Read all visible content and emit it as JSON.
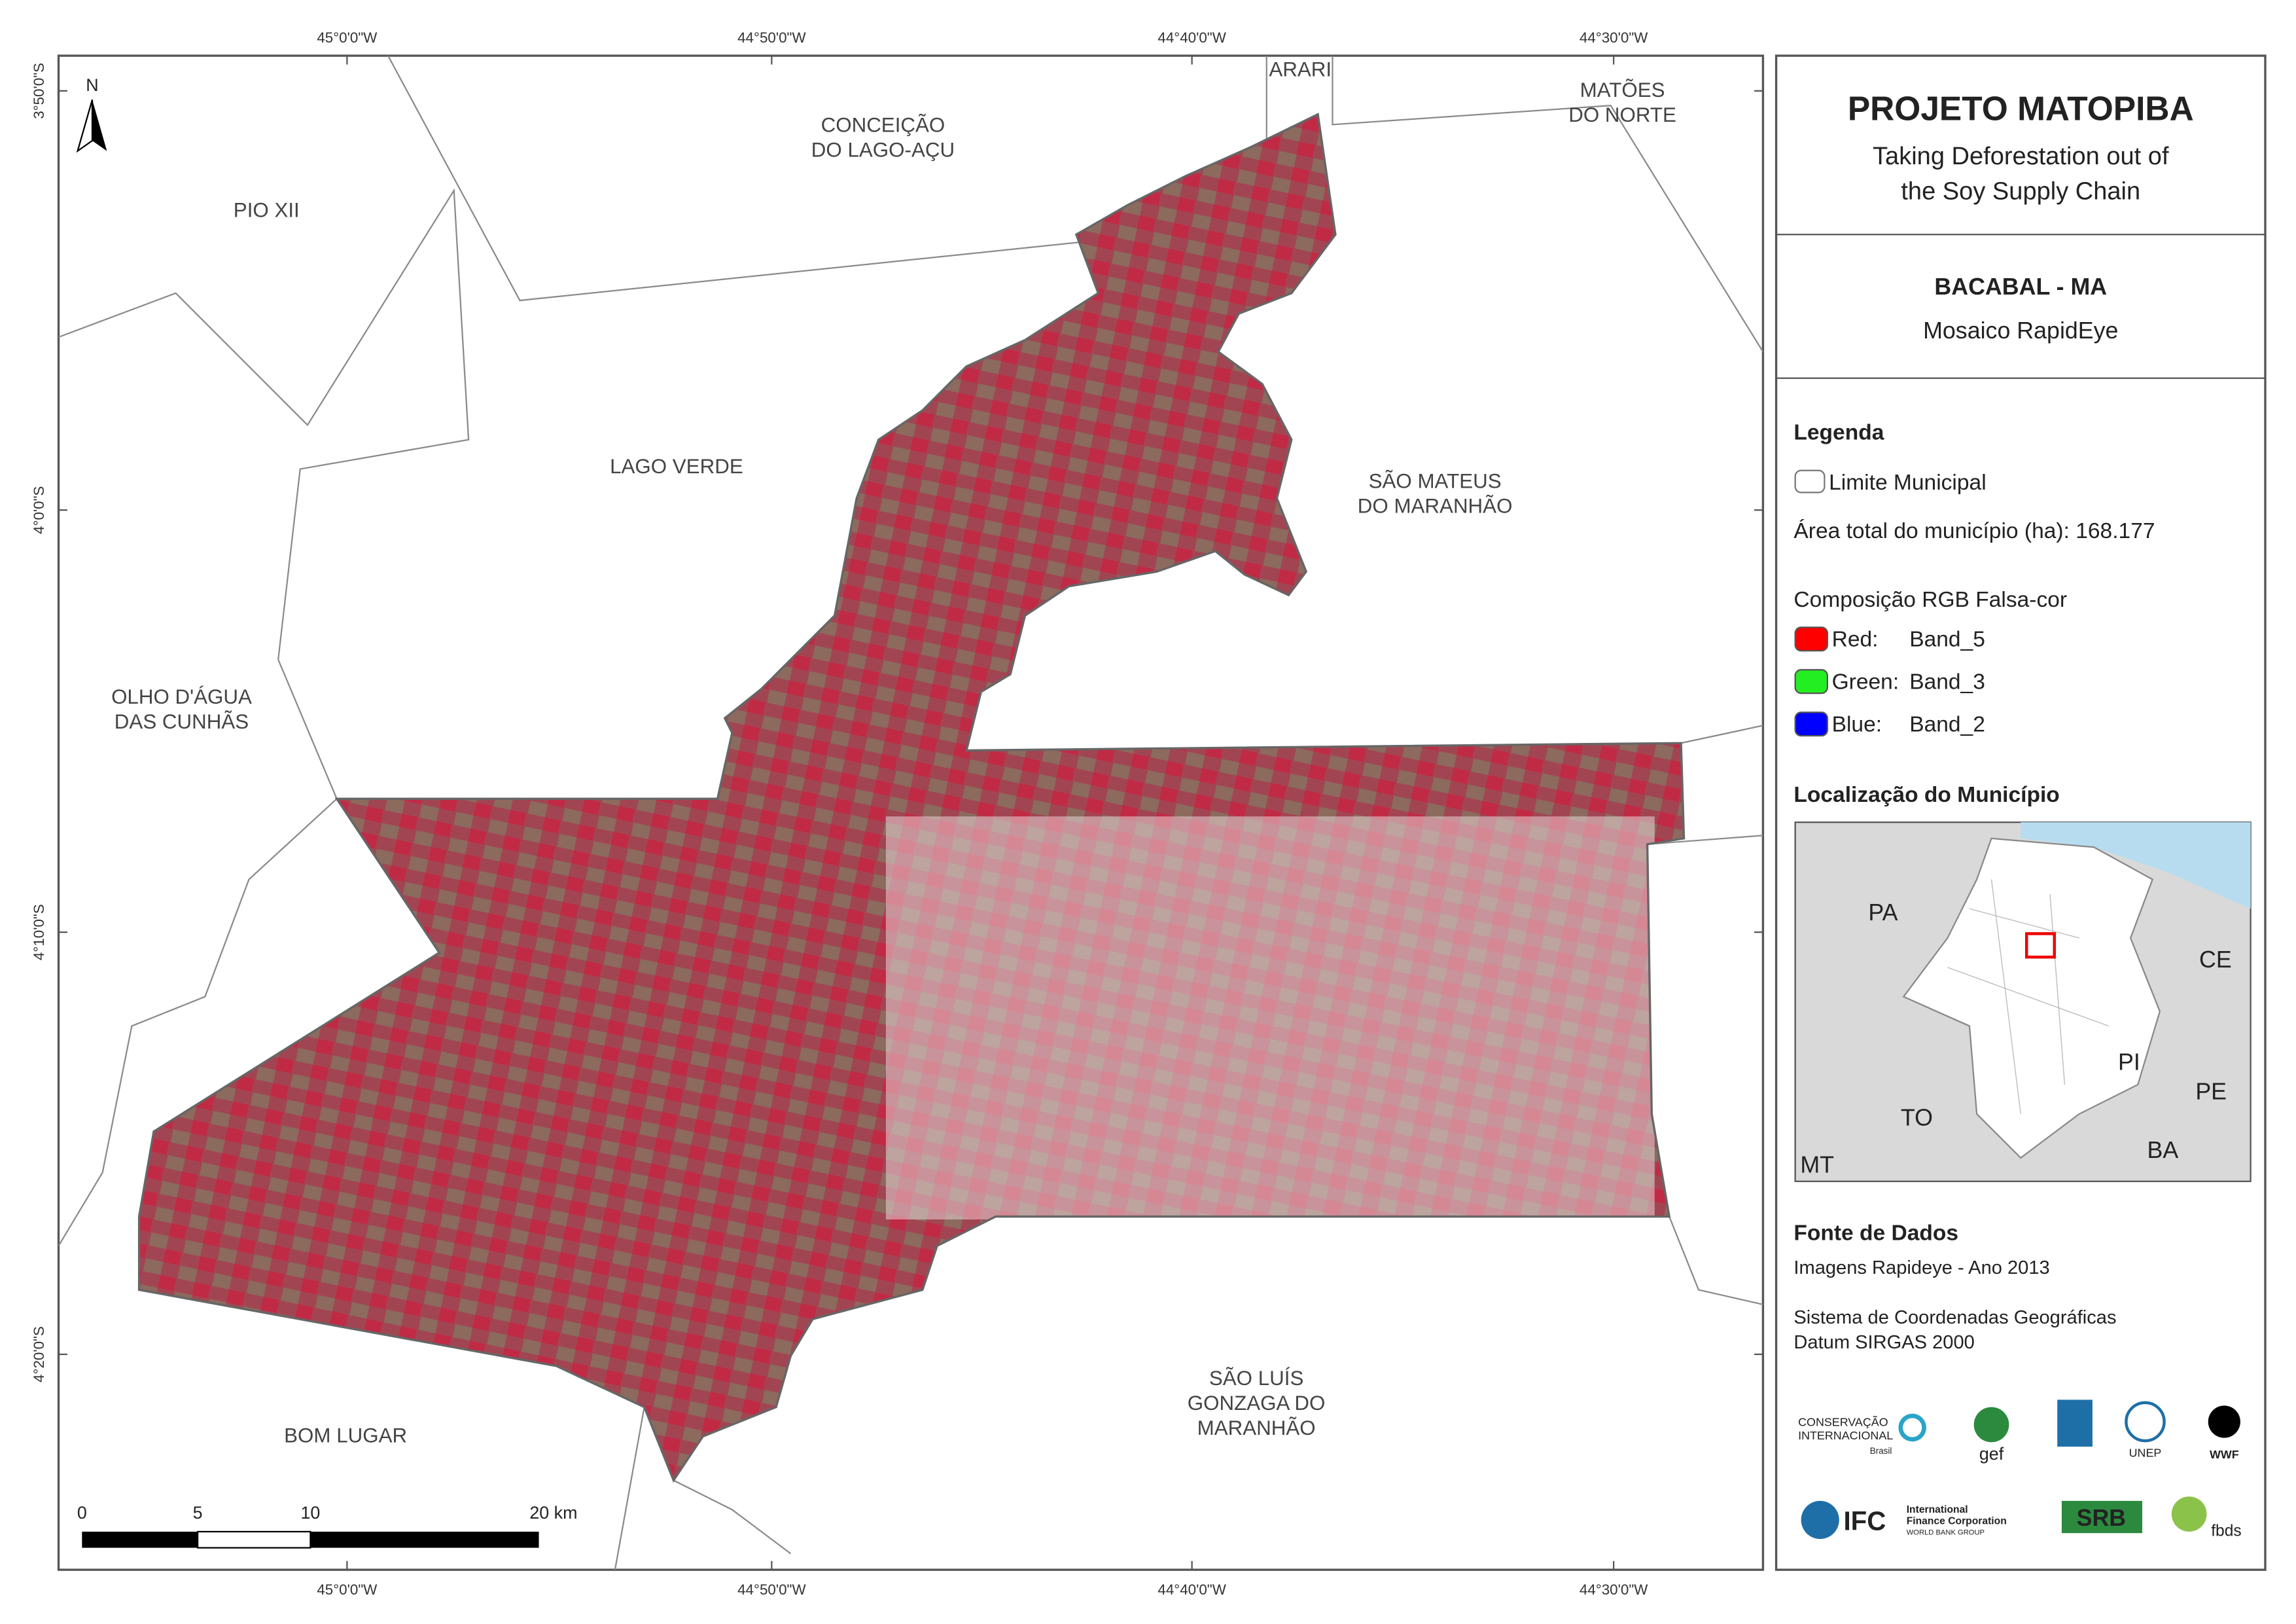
{
  "map": {
    "north": "N",
    "longitude_labels": [
      "45°0'0\"W",
      "44°50'0\"W",
      "44°40'0\"W",
      "44°30'0\"W"
    ],
    "latitude_labels": [
      "3°50'0\"S",
      "4°0'0\"S",
      "4°10'0\"S",
      "4°20'0\"S"
    ],
    "places": [
      {
        "lines": [
          "ARARI"
        ]
      },
      {
        "lines": [
          "MATÕES",
          "DO NORTE"
        ]
      },
      {
        "lines": [
          "CONCEIÇÃO",
          "DO LAGO-AÇU"
        ]
      },
      {
        "lines": [
          "PIO XII"
        ]
      },
      {
        "lines": [
          "LAGO VERDE"
        ]
      },
      {
        "lines": [
          "SÃO MATEUS",
          "DO MARANHÃO"
        ]
      },
      {
        "lines": [
          "OLHO D'ÁGUA",
          "DAS CUNHÃS"
        ]
      },
      {
        "lines": [
          "BOM LUGAR"
        ]
      },
      {
        "lines": [
          "SÃO LUÍS",
          "GONZAGA DO",
          "MARANHÃO"
        ]
      }
    ],
    "scale_bar": [
      "0",
      "5",
      "10",
      "20 km"
    ]
  },
  "panel": {
    "title": "PROJETO MATOPIBA",
    "subtitle": [
      "Taking Deforestation out of",
      "the Soy Supply Chain"
    ],
    "area": "BACABAL - MA",
    "product": "Mosaico RapidEye",
    "legend": {
      "title": "Legenda",
      "boundary": "Limite Municipal",
      "total_area": "Área total do município (ha): 168.177",
      "composition": "Composição RGB Falsa-cor",
      "bands": [
        {
          "channel": "Red:",
          "band": "Band_5",
          "color": "#ff0000"
        },
        {
          "channel": "Green:",
          "band": "Band_3",
          "color": "#22ee22"
        },
        {
          "channel": "Blue:",
          "band": "Band_2",
          "color": "#0000ff"
        }
      ]
    },
    "location": {
      "title": "Localização do Município",
      "states": [
        "PA",
        "CE",
        "PI",
        "PE",
        "TO",
        "BA",
        "MT"
      ]
    },
    "sources": {
      "title": "Fonte de Dados",
      "lines": [
        "Imagens Rapideye - Ano 2013",
        "Sistema de Coordenadas Geográficas",
        "Datum SIRGAS 2000"
      ]
    },
    "logos": [
      "CONSERVAÇÃO",
      "INTERNACIONAL",
      "Brasil",
      "gef",
      "UNEP",
      "WWF",
      "IFC",
      "International",
      "Finance Corporation",
      "WORLD BANK GROUP",
      "SRB",
      "fbds"
    ]
  }
}
